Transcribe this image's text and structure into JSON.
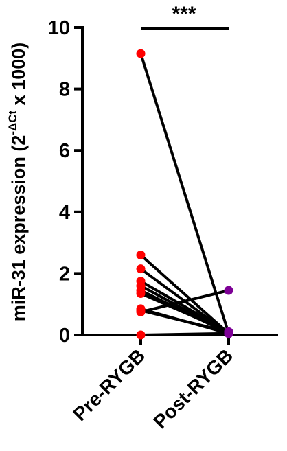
{
  "chart_data": {
    "type": "scatter",
    "subtype": "paired-line",
    "title": "",
    "xlabel": "",
    "ylabel": {
      "main": "miR-31 expression (2",
      "superscript": "-ΔCt",
      "suffix": " x 1000)"
    },
    "categories": [
      "Pre-RYGB",
      "Post-RYGB"
    ],
    "ylim": [
      0,
      10
    ],
    "yticks": [
      0,
      2,
      4,
      6,
      8,
      10
    ],
    "significance": "***",
    "series": [
      {
        "name": "Pre-RYGB",
        "color": "#ff0000",
        "values": [
          9.15,
          2.6,
          2.15,
          1.75,
          1.6,
          1.45,
          1.35,
          0.85,
          0.8,
          0.75,
          0.0
        ]
      },
      {
        "name": "Post-RYGB",
        "color": "#7d0096",
        "values": [
          0.05,
          0.05,
          0.05,
          0.1,
          0.05,
          0.05,
          0.1,
          0.05,
          0.1,
          1.45,
          0.05
        ]
      }
    ],
    "line_color": "#000000",
    "grid": false,
    "legend": "none"
  }
}
